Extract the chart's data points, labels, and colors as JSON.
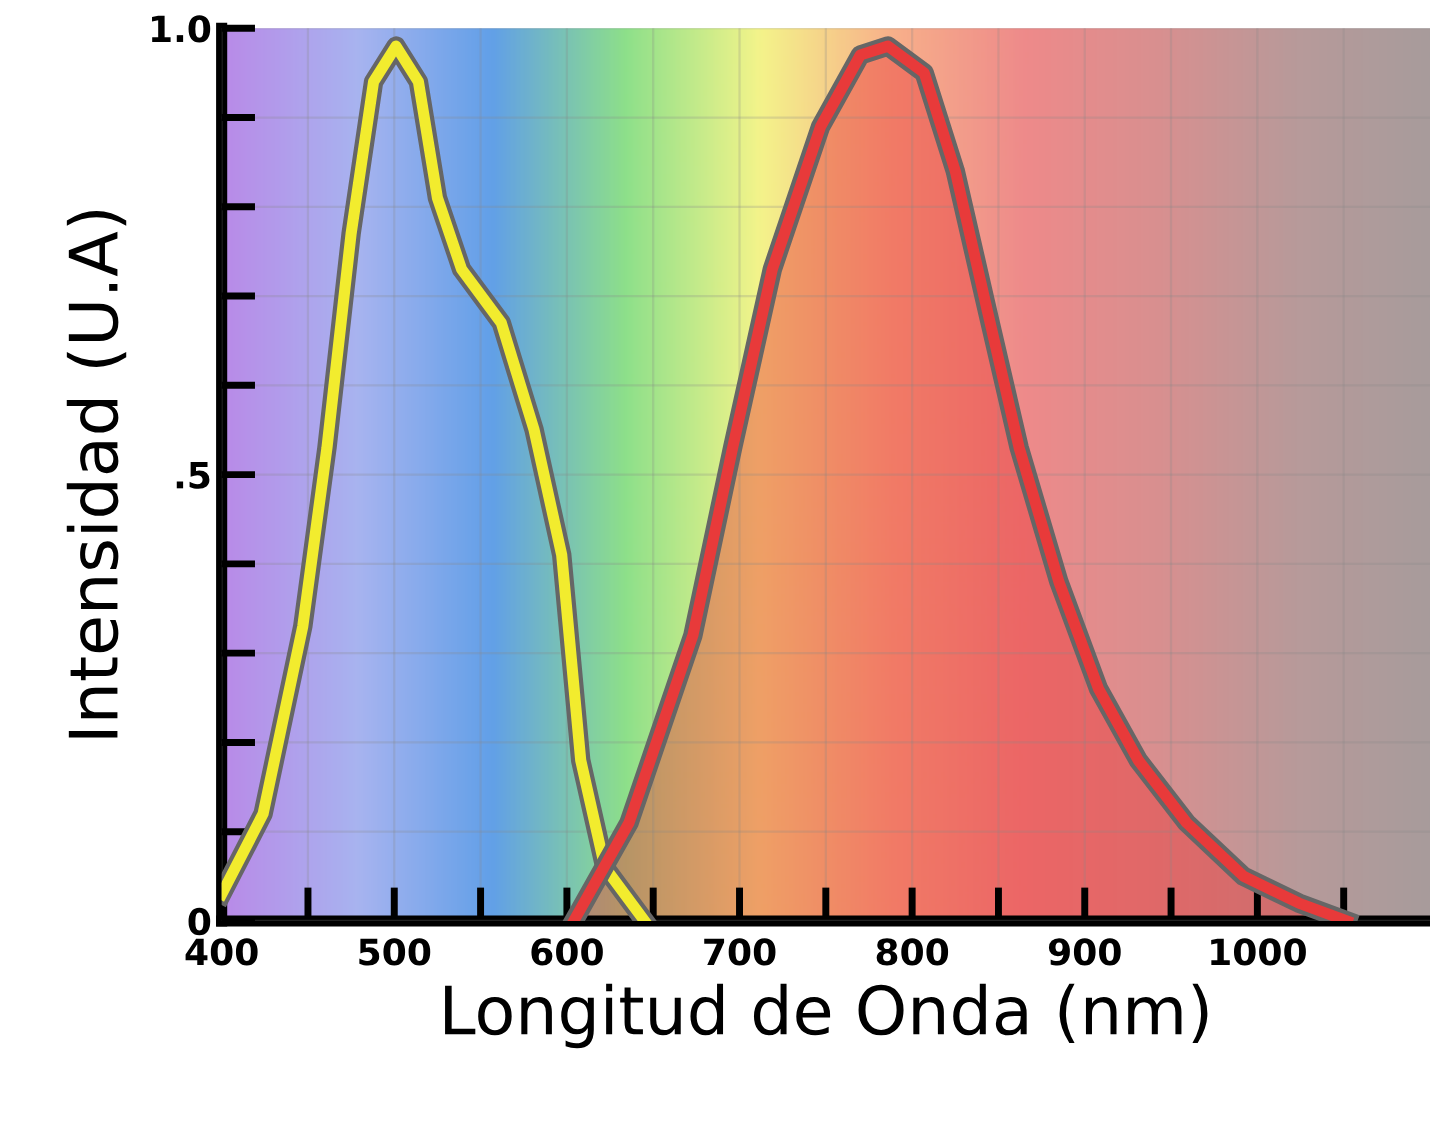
{
  "chart_data": {
    "type": "line",
    "xlabel": "Longitud de Onda (nm)",
    "ylabel": "Intensidad (U.A)",
    "xlim": [
      400,
      1100
    ],
    "ylim": [
      0,
      1.0
    ],
    "xticks": [
      400,
      {
        "value": 450,
        "label": null
      },
      500,
      {
        "value": 550,
        "label": null
      },
      600,
      {
        "value": 650,
        "label": null
      },
      700,
      {
        "value": 750,
        "label": null
      },
      800,
      {
        "value": 850,
        "label": null
      },
      900,
      {
        "value": 950,
        "label": null
      },
      1000,
      {
        "value": 1050,
        "label": null
      }
    ],
    "yticks": [
      {
        "value": 0,
        "label": "0"
      },
      {
        "value": 0.1,
        "label": null
      },
      {
        "value": 0.2,
        "label": null
      },
      {
        "value": 0.3,
        "label": null
      },
      {
        "value": 0.4,
        "label": null
      },
      {
        "value": 0.5,
        "label": ".5"
      },
      {
        "value": 0.6,
        "label": null
      },
      {
        "value": 0.7,
        "label": null
      },
      {
        "value": 0.8,
        "label": null
      },
      {
        "value": 0.9,
        "label": null
      },
      {
        "value": 1.0,
        "label": "1.0"
      }
    ],
    "grid": true,
    "line_style": "solid",
    "marker": "none",
    "series": [
      {
        "color": "#f2ec2e",
        "x": [
          400,
          424,
          447,
          461,
          475,
          488,
          501,
          514,
          525,
          539,
          562,
          581,
          597,
          608,
          622,
          645
        ],
        "values": [
          0.03,
          0.12,
          0.33,
          0.53,
          0.77,
          0.94,
          0.98,
          0.94,
          0.81,
          0.73,
          0.67,
          0.55,
          0.41,
          0.18,
          0.06,
          0
        ]
      },
      {
        "type": "area",
        "color": "#e83a3a",
        "x": [
          604,
          636,
          673,
          696,
          719,
          747,
          770,
          786,
          807,
          825,
          844,
          862,
          885,
          908,
          931,
          959,
          992,
          1024,
          1052
        ],
        "values": [
          0,
          0.11,
          0.32,
          0.53,
          0.73,
          0.89,
          0.97,
          0.98,
          0.95,
          0.84,
          0.68,
          0.53,
          0.38,
          0.26,
          0.18,
          0.11,
          0.05,
          0.02,
          0
        ]
      }
    ]
  }
}
